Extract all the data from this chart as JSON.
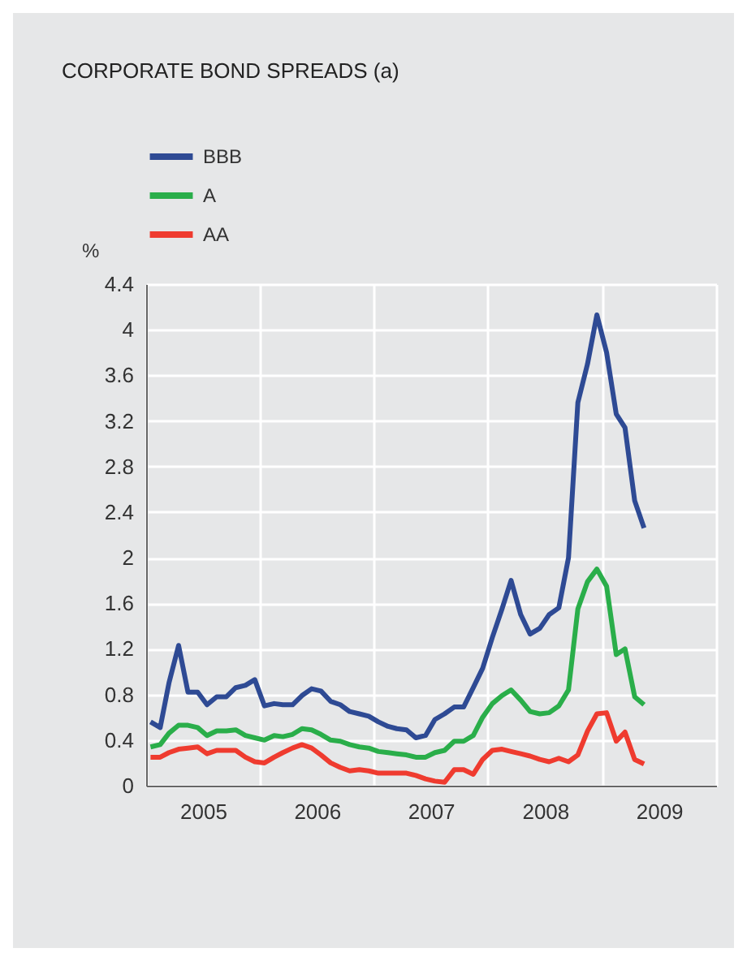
{
  "chart_data": {
    "type": "line",
    "title": "CORPORATE BOND SPREADS (a)",
    "ylabel": "%",
    "x": [
      "2005-01-15",
      "2005-02-15",
      "2005-03-15",
      "2005-04-15",
      "2005-05-15",
      "2005-06-15",
      "2005-07-15",
      "2005-08-15",
      "2005-09-15",
      "2005-10-15",
      "2005-11-15",
      "2005-12-15",
      "2006-01-15",
      "2006-02-15",
      "2006-03-15",
      "2006-04-15",
      "2006-05-15",
      "2006-06-15",
      "2006-07-15",
      "2006-08-15",
      "2006-09-15",
      "2006-10-15",
      "2006-11-15",
      "2006-12-15",
      "2007-01-15",
      "2007-02-15",
      "2007-03-15",
      "2007-04-15",
      "2007-05-15",
      "2007-06-15",
      "2007-07-15",
      "2007-08-15",
      "2007-09-15",
      "2007-10-15",
      "2007-11-15",
      "2007-12-15",
      "2008-01-15",
      "2008-02-15",
      "2008-03-15",
      "2008-04-15",
      "2008-05-15",
      "2008-06-15",
      "2008-07-15",
      "2008-08-15",
      "2008-09-15",
      "2008-10-15",
      "2008-11-15",
      "2008-12-15",
      "2009-01-15",
      "2009-02-15",
      "2009-03-15",
      "2009-04-15",
      "2009-05-15"
    ],
    "series": [
      {
        "name": "BBB",
        "color": "#2e4a94",
        "values": [
          0.56,
          0.51,
          0.9,
          1.23,
          0.82,
          0.82,
          0.71,
          0.78,
          0.78,
          0.86,
          0.88,
          0.93,
          0.7,
          0.72,
          0.71,
          0.71,
          0.79,
          0.85,
          0.83,
          0.74,
          0.71,
          0.65,
          0.63,
          0.61,
          0.56,
          0.52,
          0.5,
          0.49,
          0.42,
          0.44,
          0.58,
          0.63,
          0.69,
          0.69,
          0.86,
          1.03,
          1.3,
          1.55,
          1.8,
          1.5,
          1.33,
          1.38,
          1.5,
          1.56,
          2.0,
          3.36,
          3.7,
          4.13,
          3.8,
          3.26,
          3.14,
          2.5,
          2.26
        ]
      },
      {
        "name": "A",
        "color": "#2aae4a",
        "values": [
          0.34,
          0.36,
          0.46,
          0.53,
          0.53,
          0.51,
          0.44,
          0.48,
          0.48,
          0.49,
          0.44,
          0.42,
          0.4,
          0.44,
          0.43,
          0.45,
          0.5,
          0.49,
          0.45,
          0.4,
          0.39,
          0.36,
          0.34,
          0.33,
          0.3,
          0.29,
          0.28,
          0.27,
          0.25,
          0.25,
          0.29,
          0.31,
          0.39,
          0.39,
          0.44,
          0.6,
          0.72,
          0.79,
          0.84,
          0.75,
          0.65,
          0.63,
          0.64,
          0.7,
          0.84,
          1.55,
          1.79,
          1.9,
          1.75,
          1.15,
          1.2,
          0.78,
          0.71
        ]
      },
      {
        "name": "AA",
        "color": "#ef3b2f",
        "values": [
          0.25,
          0.25,
          0.29,
          0.32,
          0.33,
          0.34,
          0.28,
          0.31,
          0.31,
          0.31,
          0.25,
          0.21,
          0.2,
          0.25,
          0.29,
          0.33,
          0.36,
          0.33,
          0.27,
          0.2,
          0.16,
          0.13,
          0.14,
          0.13,
          0.11,
          0.11,
          0.11,
          0.11,
          0.09,
          0.06,
          0.04,
          0.03,
          0.14,
          0.14,
          0.1,
          0.23,
          0.31,
          0.32,
          0.3,
          0.28,
          0.26,
          0.23,
          0.21,
          0.24,
          0.21,
          0.27,
          0.48,
          0.63,
          0.64,
          0.39,
          0.47,
          0.23,
          0.19
        ]
      }
    ],
    "xlim": [
      "2005-01-01",
      "2010-01-01"
    ],
    "xticks": [
      {
        "value": "2005-01-01",
        "label": null
      },
      {
        "value": "2005-07-02",
        "label": "2005"
      },
      {
        "value": "2006-01-01",
        "label": null
      },
      {
        "value": "2006-07-02",
        "label": "2006"
      },
      {
        "value": "2007-01-01",
        "label": null
      },
      {
        "value": "2007-07-02",
        "label": "2007"
      },
      {
        "value": "2008-01-01",
        "label": null
      },
      {
        "value": "2008-07-02",
        "label": "2008"
      },
      {
        "value": "2009-01-01",
        "label": null
      },
      {
        "value": "2009-07-02",
        "label": "2009"
      },
      {
        "value": "2010-01-01",
        "label": null
      }
    ],
    "ylim": [
      0,
      4.4
    ],
    "yticks": [
      0,
      0.4,
      0.8,
      1.2,
      1.6,
      2,
      2.4,
      2.8,
      3.2,
      3.6,
      4,
      4.4
    ],
    "grid": true,
    "legend": "top left"
  }
}
